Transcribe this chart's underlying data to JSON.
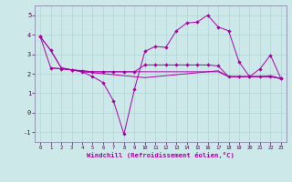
{
  "xlabel": "Windchill (Refroidissement éolien,°C)",
  "background_color": "#cce8e8",
  "grid_color": "#b0d4d4",
  "line_color": "#aa00aa",
  "x_ticks": [
    0,
    1,
    2,
    3,
    4,
    5,
    6,
    7,
    8,
    9,
    10,
    11,
    12,
    13,
    14,
    15,
    16,
    17,
    18,
    19,
    20,
    21,
    22,
    23
  ],
  "ylim": [
    -1.5,
    5.5
  ],
  "xlim": [
    -0.5,
    23.5
  ],
  "yticks": [
    -1,
    0,
    1,
    2,
    3,
    4,
    5
  ],
  "line1_x": [
    0,
    1,
    2,
    3,
    4,
    5,
    6,
    7,
    8,
    9,
    10,
    11,
    12,
    13,
    14,
    15,
    16,
    17,
    18,
    19,
    20,
    21,
    22,
    23
  ],
  "line1_y": [
    3.9,
    3.2,
    2.3,
    2.2,
    2.1,
    1.85,
    1.55,
    0.6,
    -1.1,
    1.2,
    3.15,
    3.4,
    3.35,
    4.2,
    4.6,
    4.65,
    5.0,
    4.4,
    4.2,
    2.6,
    1.85,
    2.25,
    2.95,
    1.75
  ],
  "line2_x": [
    0,
    1,
    2,
    3,
    4,
    5,
    6,
    7,
    8,
    9,
    10,
    11,
    12,
    13,
    14,
    15,
    16,
    17,
    18,
    19,
    20,
    21,
    22,
    23
  ],
  "line2_y": [
    3.9,
    3.2,
    2.3,
    2.2,
    2.1,
    2.05,
    2.0,
    1.95,
    1.9,
    1.85,
    1.8,
    1.85,
    1.9,
    1.95,
    2.0,
    2.05,
    2.1,
    2.15,
    1.85,
    1.85,
    1.85,
    1.85,
    1.9,
    1.75
  ],
  "line3_x": [
    0,
    1,
    2,
    3,
    4,
    5,
    6,
    7,
    8,
    9,
    10,
    11,
    12,
    13,
    14,
    15,
    16,
    17,
    18,
    19,
    20,
    21,
    22,
    23
  ],
  "line3_y": [
    3.9,
    2.3,
    2.25,
    2.2,
    2.15,
    2.1,
    2.1,
    2.1,
    2.1,
    2.1,
    2.45,
    2.45,
    2.45,
    2.45,
    2.45,
    2.45,
    2.45,
    2.4,
    1.85,
    1.85,
    1.85,
    1.85,
    1.85,
    1.75
  ],
  "line4_x": [
    1,
    2,
    3,
    4,
    5,
    6,
    7,
    8,
    9,
    10,
    11,
    12,
    13,
    14,
    15,
    16,
    17,
    18,
    19,
    20,
    21,
    22,
    23
  ],
  "line4_y": [
    2.3,
    2.25,
    2.2,
    2.15,
    2.1,
    2.1,
    2.1,
    2.1,
    2.1,
    2.1,
    2.1,
    2.1,
    2.1,
    2.1,
    2.1,
    2.1,
    2.1,
    1.85,
    1.85,
    1.85,
    1.85,
    1.85,
    1.75
  ]
}
